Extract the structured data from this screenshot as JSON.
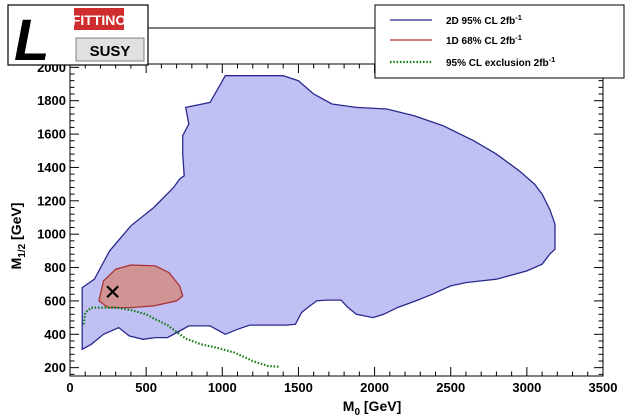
{
  "chart_data": {
    "type": "area",
    "xlabel": "M_0 [GeV]",
    "ylabel": "M_1/2 [GeV]",
    "xlim": [
      0,
      3500
    ],
    "ylim": [
      150,
      2020
    ],
    "xticks": [
      0,
      500,
      1000,
      1500,
      2000,
      2500,
      3000,
      3500
    ],
    "yticks": [
      200,
      400,
      600,
      800,
      1000,
      1200,
      1400,
      1600,
      1800,
      2000
    ],
    "logo": {
      "top_text": "FITTINO",
      "bottom_text": "SUSY",
      "letter": "L"
    },
    "series": [
      {
        "name": "2D 95% CL  2fb-1",
        "kind": "filled_contour",
        "fill": "#c0c0f4",
        "stroke": "#2a2a8e",
        "points": [
          [
            80,
            680
          ],
          [
            160,
            730
          ],
          [
            260,
            900
          ],
          [
            400,
            1050
          ],
          [
            550,
            1160
          ],
          [
            680,
            1280
          ],
          [
            720,
            1330
          ],
          [
            750,
            1350
          ],
          [
            740,
            1480
          ],
          [
            740,
            1590
          ],
          [
            780,
            1660
          ],
          [
            760,
            1760
          ],
          [
            920,
            1790
          ],
          [
            1020,
            1950
          ],
          [
            1400,
            1950
          ],
          [
            1500,
            1920
          ],
          [
            1600,
            1840
          ],
          [
            1720,
            1780
          ],
          [
            1880,
            1760
          ],
          [
            2080,
            1750
          ],
          [
            2260,
            1710
          ],
          [
            2450,
            1650
          ],
          [
            2650,
            1560
          ],
          [
            2800,
            1480
          ],
          [
            2950,
            1380
          ],
          [
            3050,
            1300
          ],
          [
            3100,
            1240
          ],
          [
            3150,
            1150
          ],
          [
            3185,
            1060
          ],
          [
            3185,
            910
          ],
          [
            3150,
            880
          ],
          [
            3100,
            820
          ],
          [
            3000,
            780
          ],
          [
            2900,
            755
          ],
          [
            2800,
            730
          ],
          [
            2700,
            720
          ],
          [
            2600,
            710
          ],
          [
            2500,
            690
          ],
          [
            2380,
            640
          ],
          [
            2270,
            600
          ],
          [
            2150,
            560
          ],
          [
            2060,
            520
          ],
          [
            1990,
            500
          ],
          [
            1880,
            520
          ],
          [
            1820,
            565
          ],
          [
            1780,
            605
          ],
          [
            1680,
            605
          ],
          [
            1620,
            600
          ],
          [
            1560,
            560
          ],
          [
            1520,
            530
          ],
          [
            1480,
            460
          ],
          [
            1420,
            455
          ],
          [
            1300,
            455
          ],
          [
            1180,
            455
          ],
          [
            1100,
            430
          ],
          [
            1020,
            400
          ],
          [
            920,
            450
          ],
          [
            780,
            450
          ],
          [
            720,
            420
          ],
          [
            640,
            380
          ],
          [
            560,
            380
          ],
          [
            480,
            370
          ],
          [
            390,
            390
          ],
          [
            320,
            440
          ],
          [
            220,
            400
          ],
          [
            140,
            340
          ],
          [
            80,
            310
          ]
        ]
      },
      {
        "name": "1D 68% CL  2fb-1",
        "kind": "filled_contour",
        "fill": "#cf9493",
        "stroke": "#a83232",
        "points": [
          [
            190,
            600
          ],
          [
            220,
            720
          ],
          [
            300,
            790
          ],
          [
            400,
            815
          ],
          [
            560,
            810
          ],
          [
            650,
            770
          ],
          [
            720,
            690
          ],
          [
            740,
            630
          ],
          [
            700,
            600
          ],
          [
            550,
            570
          ],
          [
            400,
            560
          ],
          [
            250,
            560
          ]
        ]
      },
      {
        "name": "95% CL exclusion 2fb-1",
        "kind": "dotted_line",
        "stroke": "#0f7a0f",
        "points": [
          [
            90,
            460
          ],
          [
            100,
            530
          ],
          [
            140,
            560
          ],
          [
            200,
            560
          ],
          [
            300,
            560
          ],
          [
            400,
            545
          ],
          [
            500,
            520
          ],
          [
            560,
            490
          ],
          [
            640,
            455
          ],
          [
            690,
            420
          ],
          [
            760,
            375
          ],
          [
            860,
            340
          ],
          [
            960,
            320
          ],
          [
            1080,
            290
          ],
          [
            1200,
            240
          ],
          [
            1300,
            210
          ],
          [
            1380,
            205
          ]
        ]
      }
    ],
    "best_fit_marker": {
      "x": 280,
      "y": 655,
      "symbol": "cross"
    }
  }
}
